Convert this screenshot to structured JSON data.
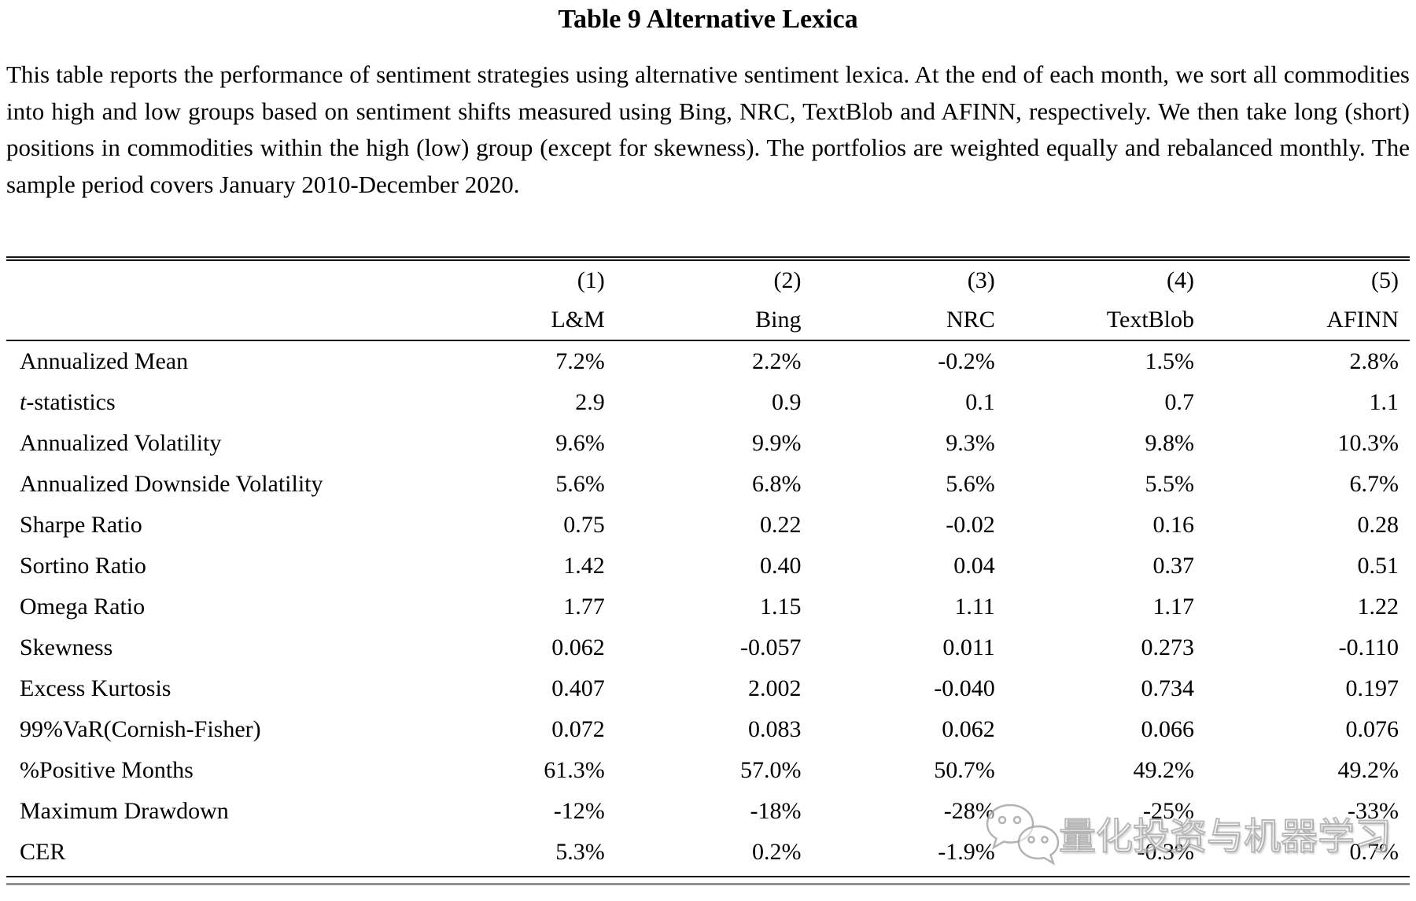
{
  "title": "Table 9 Alternative Lexica",
  "description": "This table reports the performance of sentiment strategies using alternative sentiment lexica. At the end of each month, we sort all commodities into high and low groups based on sentiment shifts measured using Bing, NRC, TextBlob and AFINN, respectively. We then take long (short) positions in commodities within the high (low) group (except for skewness). The portfolios are weighted equally and rebalanced monthly. The sample period covers January 2010-December 2020.",
  "table": {
    "column_numbers": [
      "(1)",
      "(2)",
      "(3)",
      "(4)",
      "(5)"
    ],
    "column_names": [
      "L&M",
      "Bing",
      "NRC",
      "TextBlob",
      "AFINN"
    ],
    "rows": [
      {
        "label": "Annualized Mean",
        "values": [
          "7.2%",
          "2.2%",
          "-0.2%",
          "1.5%",
          "2.8%"
        ]
      },
      {
        "label": "t-statistics",
        "italic_prefix_chars": 1,
        "values": [
          "2.9",
          "0.9",
          "0.1",
          "0.7",
          "1.1"
        ]
      },
      {
        "label": "Annualized Volatility",
        "values": [
          "9.6%",
          "9.9%",
          "9.3%",
          "9.8%",
          "10.3%"
        ]
      },
      {
        "label": "Annualized Downside Volatility",
        "values": [
          "5.6%",
          "6.8%",
          "5.6%",
          "5.5%",
          "6.7%"
        ]
      },
      {
        "label": "Sharpe Ratio",
        "values": [
          "0.75",
          "0.22",
          "-0.02",
          "0.16",
          "0.28"
        ]
      },
      {
        "label": "Sortino Ratio",
        "values": [
          "1.42",
          "0.40",
          "0.04",
          "0.37",
          "0.51"
        ]
      },
      {
        "label": "Omega Ratio",
        "values": [
          "1.77",
          "1.15",
          "1.11",
          "1.17",
          "1.22"
        ]
      },
      {
        "label": "Skewness",
        "values": [
          "0.062",
          "-0.057",
          "0.011",
          "0.273",
          "-0.110"
        ]
      },
      {
        "label": "Excess Kurtosis",
        "values": [
          "0.407",
          "2.002",
          "-0.040",
          "0.734",
          "0.197"
        ]
      },
      {
        "label": "99%VaR(Cornish-Fisher)",
        "values": [
          "0.072",
          "0.083",
          "0.062",
          "0.066",
          "0.076"
        ]
      },
      {
        "label": "%Positive Months",
        "values": [
          "61.3%",
          "57.0%",
          "50.7%",
          "49.2%",
          "49.2%"
        ]
      },
      {
        "label": "Maximum Drawdown",
        "values": [
          "-12%",
          "-18%",
          "-28%",
          "-25%",
          "-33%"
        ]
      },
      {
        "label": "CER",
        "values": [
          "5.3%",
          "0.2%",
          "-1.9%",
          "-0.3%",
          "0.7%"
        ]
      }
    ]
  },
  "watermark": {
    "text": "量化投资与机器学习",
    "logo": "wechat-logo",
    "stroke_color": "#a3a3a3",
    "fill_color": "#ffffff"
  }
}
